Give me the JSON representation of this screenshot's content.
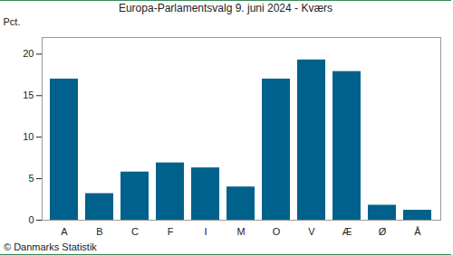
{
  "chart_data": {
    "type": "bar",
    "title": "Europa-Parlamentsvalg 9. juni 2024 - Kværs",
    "caption": "© Danmarks Statistik",
    "y_label": "Pct.",
    "categories": [
      "A",
      "B",
      "C",
      "F",
      "I",
      "M",
      "O",
      "V",
      "Æ",
      "Ø",
      "Å"
    ],
    "values": [
      17.0,
      3.2,
      5.8,
      6.9,
      6.3,
      4.0,
      17.0,
      19.3,
      17.9,
      1.8,
      1.2
    ],
    "color": "#00628c",
    "ylim": [
      0,
      22
    ],
    "yticks": [
      0,
      5,
      10,
      15,
      20
    ],
    "grid": false
  }
}
